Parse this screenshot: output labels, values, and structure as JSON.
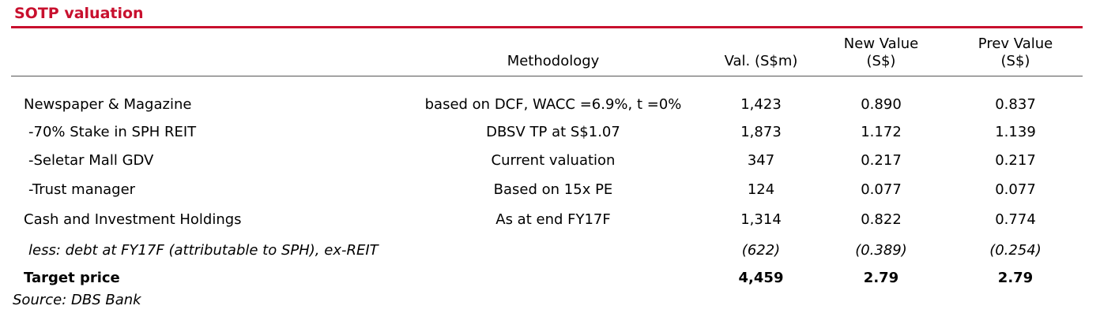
{
  "title": "SOTP valuation",
  "table": {
    "header": [
      "Methodology",
      "Val. (S$m)",
      "New Value (S$)",
      "Prev Value (S$)"
    ],
    "rows": [
      [
        "Newspaper & Magazine",
        "based on DCF, WACC =6.9%, t =0%",
        "1,423",
        "0.890",
        "0.837"
      ],
      [
        "-70% Stake in SPH REIT",
        "DBSV TP at S$1.07",
        "1,873",
        "1.172",
        "1.139"
      ],
      [
        "-Seletar Mall GDV",
        "Current valuation",
        "347",
        "0.217",
        "0.217"
      ],
      [
        "-Trust manager",
        "Based on 15x PE",
        "124",
        "0.077",
        "0.077"
      ],
      [
        "Cash and Investment Holdings",
        "As at end FY17F",
        "1,314",
        "0.822",
        "0.774"
      ],
      [
        "less: debt at FY17F (attributable to SPH), ex-REIT",
        null,
        "(622)",
        "(0.389)",
        "(0.254)"
      ],
      [
        "Target price",
        null,
        "4,459",
        "2.79",
        "2.79"
      ]
    ]
  },
  "source": "Source: DBS Bank"
}
